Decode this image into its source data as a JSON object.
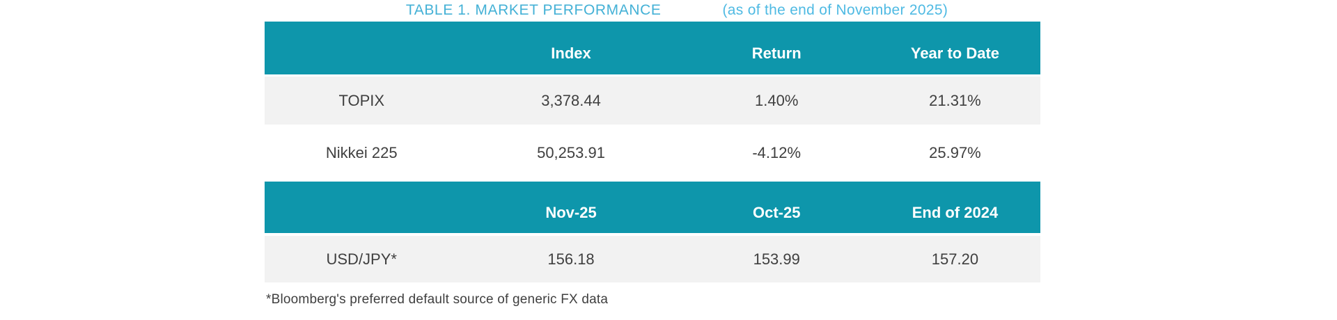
{
  "page_title": {
    "main": "TABLE 1. MARKET PERFORMANCE",
    "as_of": "(as of the end of November 2025)"
  },
  "colors": {
    "header_background": "#0e96ab",
    "row_alt_background": "#f2f2f2",
    "title_main": "#44b1d6",
    "title_as_of": "#4fbae3",
    "body_text": "#3f3f3f"
  },
  "market_table": {
    "headers": [
      "",
      "Index",
      "Return",
      "Year to Date"
    ],
    "rows": [
      [
        "TOPIX",
        "3,378.44",
        "1.40%",
        "21.31%"
      ],
      [
        "Nikkei 225",
        "50,253.91",
        "-4.12%",
        "25.97%"
      ]
    ]
  },
  "fx_table": {
    "headers": [
      "",
      "Nov-25",
      "Oct-25",
      "End of 2024"
    ],
    "rows": [
      [
        "USD/JPY*",
        "156.18",
        "153.99",
        "157.20"
      ]
    ]
  },
  "footnote": "*Bloomberg's preferred default source of generic FX data"
}
